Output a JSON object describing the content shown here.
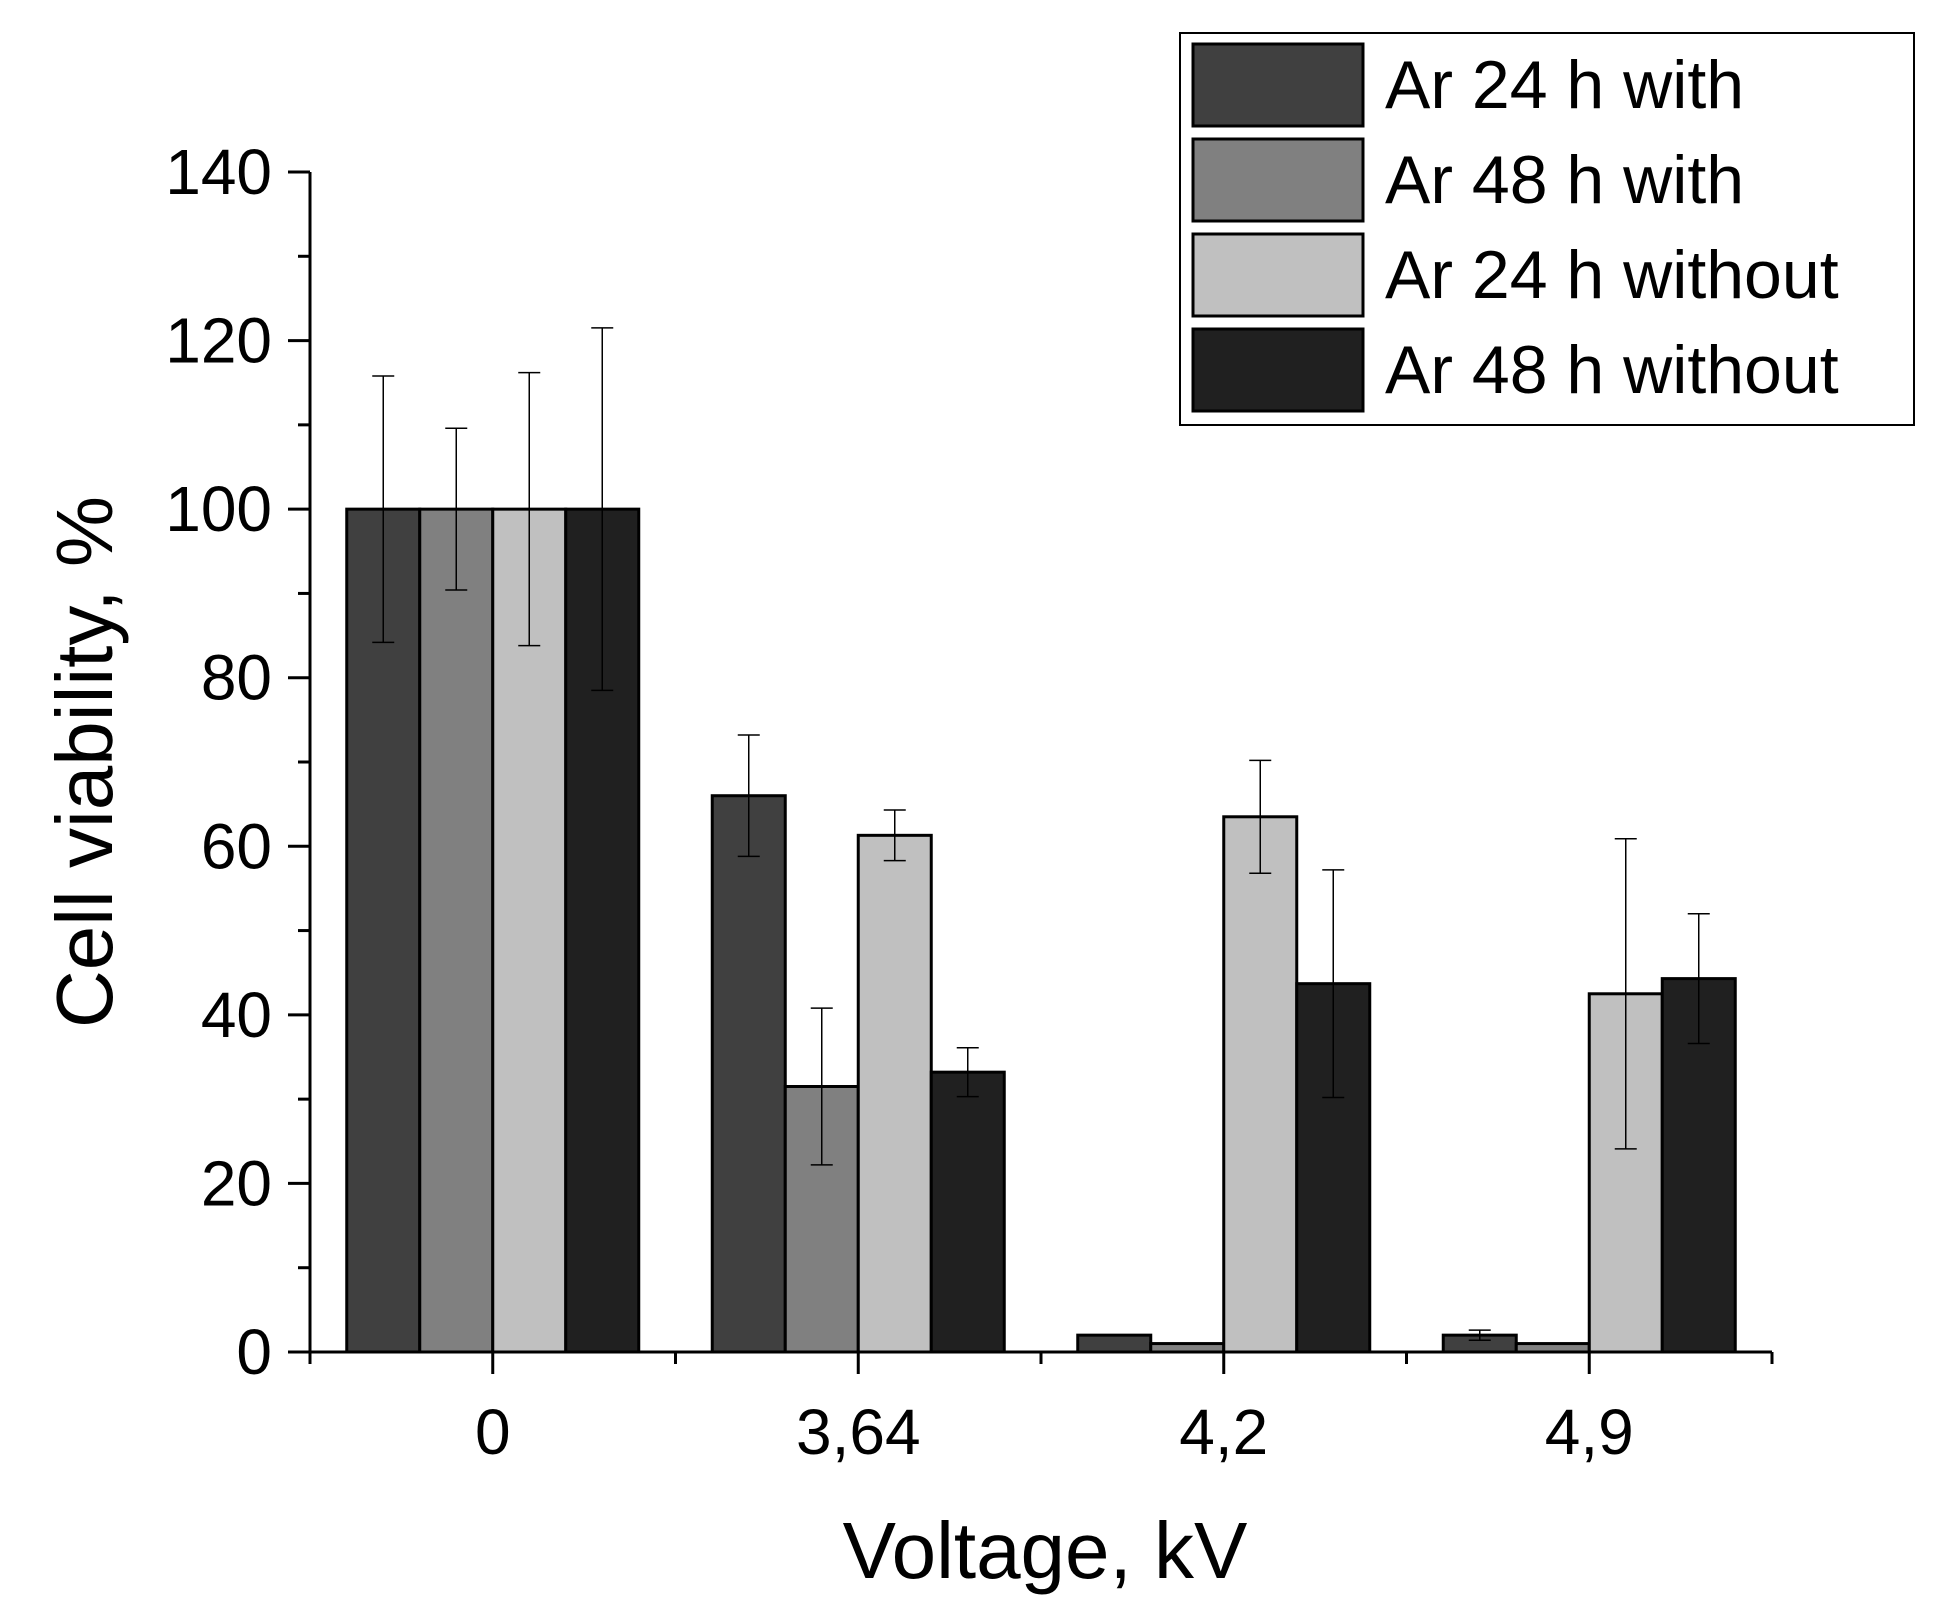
{
  "chart_data": {
    "type": "bar",
    "title": "",
    "xlabel": "Voltage, kV",
    "ylabel": "Cell viability, %",
    "categories": [
      "0",
      "3,64",
      "4,2",
      "4,9"
    ],
    "ylim": [
      0,
      140
    ],
    "yticks": [
      0,
      20,
      40,
      60,
      80,
      100,
      120,
      140
    ],
    "ytick_labels": [
      "0",
      "20",
      "40",
      "60",
      "80",
      "100",
      "120",
      "140"
    ],
    "legend_position": "top-right",
    "series": [
      {
        "name": "Ar 24 h with",
        "color": "#404040",
        "values": [
          100,
          66,
          2,
          2
        ],
        "errors": [
          15.8,
          7.2,
          0,
          0.6
        ]
      },
      {
        "name": "Ar 48 h with",
        "color": "#808080",
        "values": [
          100,
          31.5,
          1,
          1
        ],
        "errors": [
          9.6,
          9.3,
          0,
          0
        ]
      },
      {
        "name": "Ar 24 h without",
        "color": "#c0c0c0",
        "values": [
          100,
          61.3,
          63.5,
          42.5
        ],
        "errors": [
          16.2,
          3.0,
          6.7,
          18.4
        ]
      },
      {
        "name": "Ar 48 h without",
        "color": "#202020",
        "values": [
          100,
          33.2,
          43.7,
          44.3
        ],
        "errors": [
          21.5,
          2.9,
          13.5,
          7.7
        ]
      }
    ]
  }
}
